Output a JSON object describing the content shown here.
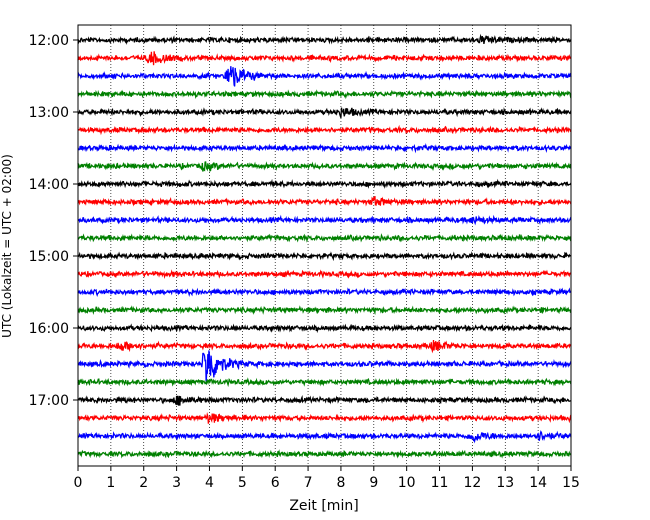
{
  "chart_data": {
    "type": "line",
    "subtype": "seismogram-helicorder",
    "xlabel": "Zeit  [min]",
    "ylabel": "UTC (Lokalzeit = UTC + 02:00)",
    "x_ticks": [
      "0",
      "1",
      "2",
      "3",
      "4",
      "5",
      "6",
      "7",
      "8",
      "9",
      "10",
      "11",
      "12",
      "13",
      "14",
      "15"
    ],
    "xlim": [
      0,
      15
    ],
    "y_tick_labels": [
      "12:00",
      "13:00",
      "14:00",
      "15:00",
      "16:00",
      "17:00"
    ],
    "row_interval_min": 15,
    "grid": "vertical-dotted",
    "trace_colors": [
      "#000000",
      "#ff0000",
      "#0000ff",
      "#008000"
    ],
    "traces": [
      {
        "start": "12:00",
        "color": "#000000",
        "events": [
          {
            "t": 12.3,
            "amp": 0.25
          }
        ]
      },
      {
        "start": "12:15",
        "color": "#ff0000",
        "events": [
          {
            "t": 2.2,
            "amp": 0.45
          }
        ]
      },
      {
        "start": "12:30",
        "color": "#0000ff",
        "events": [
          {
            "t": 4.6,
            "amp": 1.0
          }
        ]
      },
      {
        "start": "12:45",
        "color": "#008000",
        "events": []
      },
      {
        "start": "13:00",
        "color": "#000000",
        "events": [
          {
            "t": 8.0,
            "amp": 0.3
          }
        ]
      },
      {
        "start": "13:15",
        "color": "#ff0000",
        "events": []
      },
      {
        "start": "13:30",
        "color": "#0000ff",
        "events": []
      },
      {
        "start": "13:45",
        "color": "#008000",
        "events": [
          {
            "t": 3.8,
            "amp": 0.25
          }
        ]
      },
      {
        "start": "14:00",
        "color": "#000000",
        "events": []
      },
      {
        "start": "14:15",
        "color": "#ff0000",
        "events": [
          {
            "t": 9.0,
            "amp": 0.25
          }
        ]
      },
      {
        "start": "14:30",
        "color": "#0000ff",
        "events": [
          {
            "t": 12.0,
            "amp": 0.2
          }
        ]
      },
      {
        "start": "14:45",
        "color": "#008000",
        "events": []
      },
      {
        "start": "15:00",
        "color": "#000000",
        "events": []
      },
      {
        "start": "15:15",
        "color": "#ff0000",
        "events": []
      },
      {
        "start": "15:30",
        "color": "#0000ff",
        "events": []
      },
      {
        "start": "15:45",
        "color": "#008000",
        "events": []
      },
      {
        "start": "16:00",
        "color": "#000000",
        "events": []
      },
      {
        "start": "16:15",
        "color": "#ff0000",
        "events": [
          {
            "t": 1.3,
            "amp": 0.3
          },
          {
            "t": 10.8,
            "amp": 0.3
          }
        ]
      },
      {
        "start": "16:30",
        "color": "#0000ff",
        "events": [
          {
            "t": 3.9,
            "amp": 1.7
          }
        ]
      },
      {
        "start": "16:45",
        "color": "#008000",
        "events": []
      },
      {
        "start": "17:00",
        "color": "#000000",
        "events": [
          {
            "t": 3.0,
            "amp": 0.3
          }
        ]
      },
      {
        "start": "17:15",
        "color": "#ff0000",
        "events": [
          {
            "t": 4.0,
            "amp": 0.3
          }
        ]
      },
      {
        "start": "17:30",
        "color": "#0000ff",
        "events": [
          {
            "t": 12.0,
            "amp": 0.35
          },
          {
            "t": 14.0,
            "amp": 0.25
          }
        ]
      },
      {
        "start": "17:45",
        "color": "#008000",
        "events": []
      }
    ]
  }
}
